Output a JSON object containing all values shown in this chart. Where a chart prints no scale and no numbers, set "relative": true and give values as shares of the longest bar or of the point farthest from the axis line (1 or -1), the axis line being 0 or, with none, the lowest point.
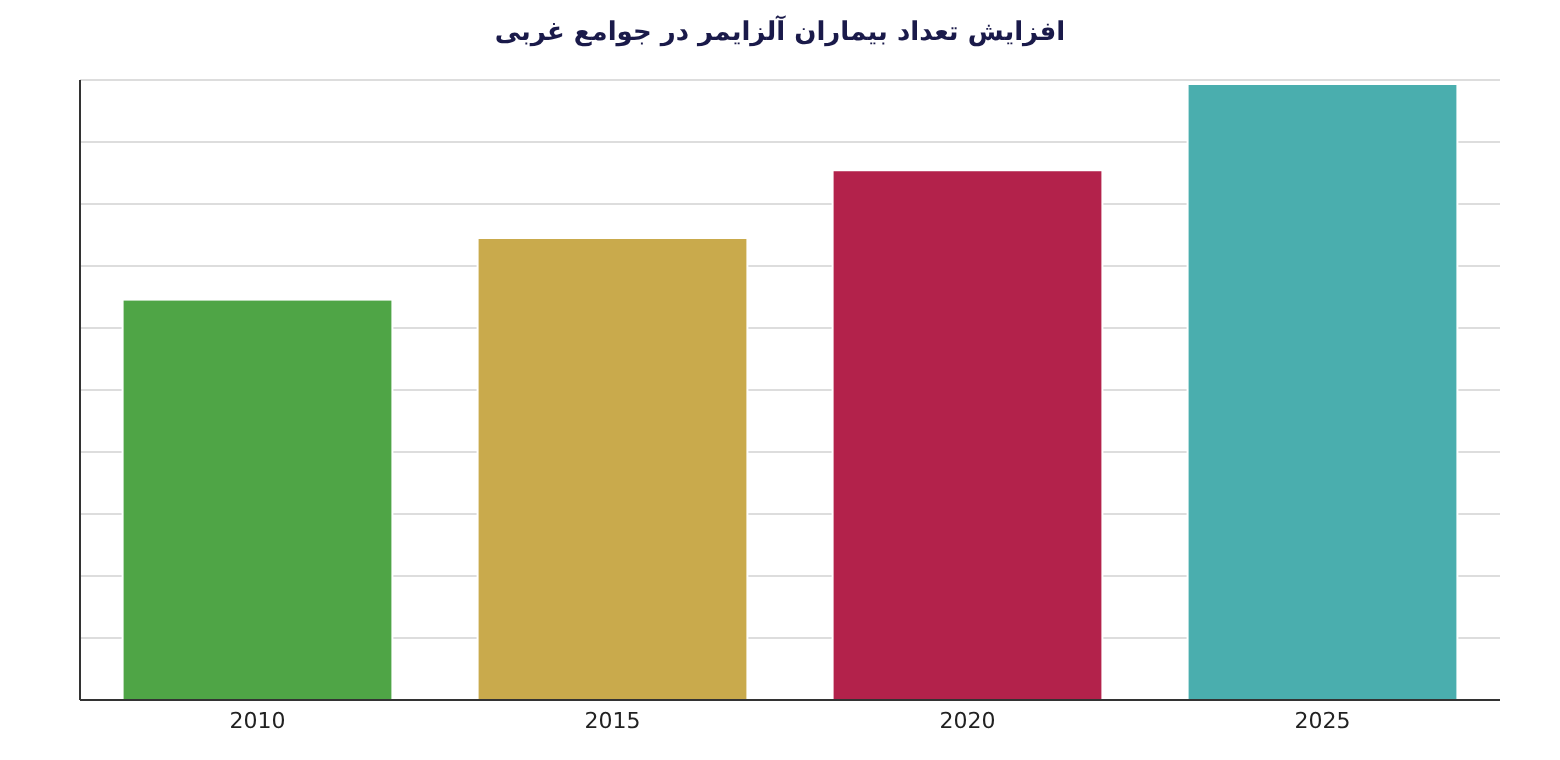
{
  "chart_data": {
    "type": "bar",
    "title": "افزایش تعداد بیماران آلزایمر در جوامع غربی",
    "categories": [
      "2010",
      "2015",
      "2020",
      "2025"
    ],
    "values": [
      0.65,
      0.75,
      0.86,
      1
    ],
    "colors": [
      "#4fa546",
      "#c9aa4c",
      "#b3224b",
      "#4aaeae"
    ],
    "relative": true,
    "grid": "y"
  }
}
